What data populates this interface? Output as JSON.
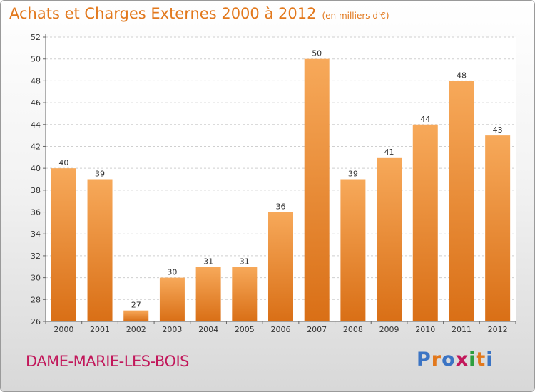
{
  "header": {
    "title": "Achats et Charges Externes 2000 à 2012",
    "unit": "(en milliers d'€)"
  },
  "footer": {
    "commune": "DAME-MARIE-LES-BOIS",
    "brand": "Proxiti"
  },
  "colors": {
    "accent": "#e2781c",
    "bar_top": "#f7a95a",
    "bar_bottom": "#d96f16",
    "commune": "#c2185b",
    "logo": [
      "#3b74c4",
      "#e2781c",
      "#3b74c4",
      "#c2185b",
      "#2e9e3e",
      "#e2781c",
      "#3b74c4"
    ]
  },
  "chart_data": {
    "type": "bar",
    "categories": [
      "2000",
      "2001",
      "2002",
      "2003",
      "2004",
      "2005",
      "2006",
      "2007",
      "2008",
      "2009",
      "2010",
      "2011",
      "2012"
    ],
    "values": [
      40,
      39,
      27,
      30,
      31,
      31,
      36,
      50,
      39,
      41,
      44,
      48,
      43
    ],
    "ylim": [
      26,
      52
    ],
    "yticks": [
      26,
      28,
      30,
      32,
      34,
      36,
      38,
      40,
      42,
      44,
      46,
      48,
      50,
      52
    ],
    "grid": true
  }
}
